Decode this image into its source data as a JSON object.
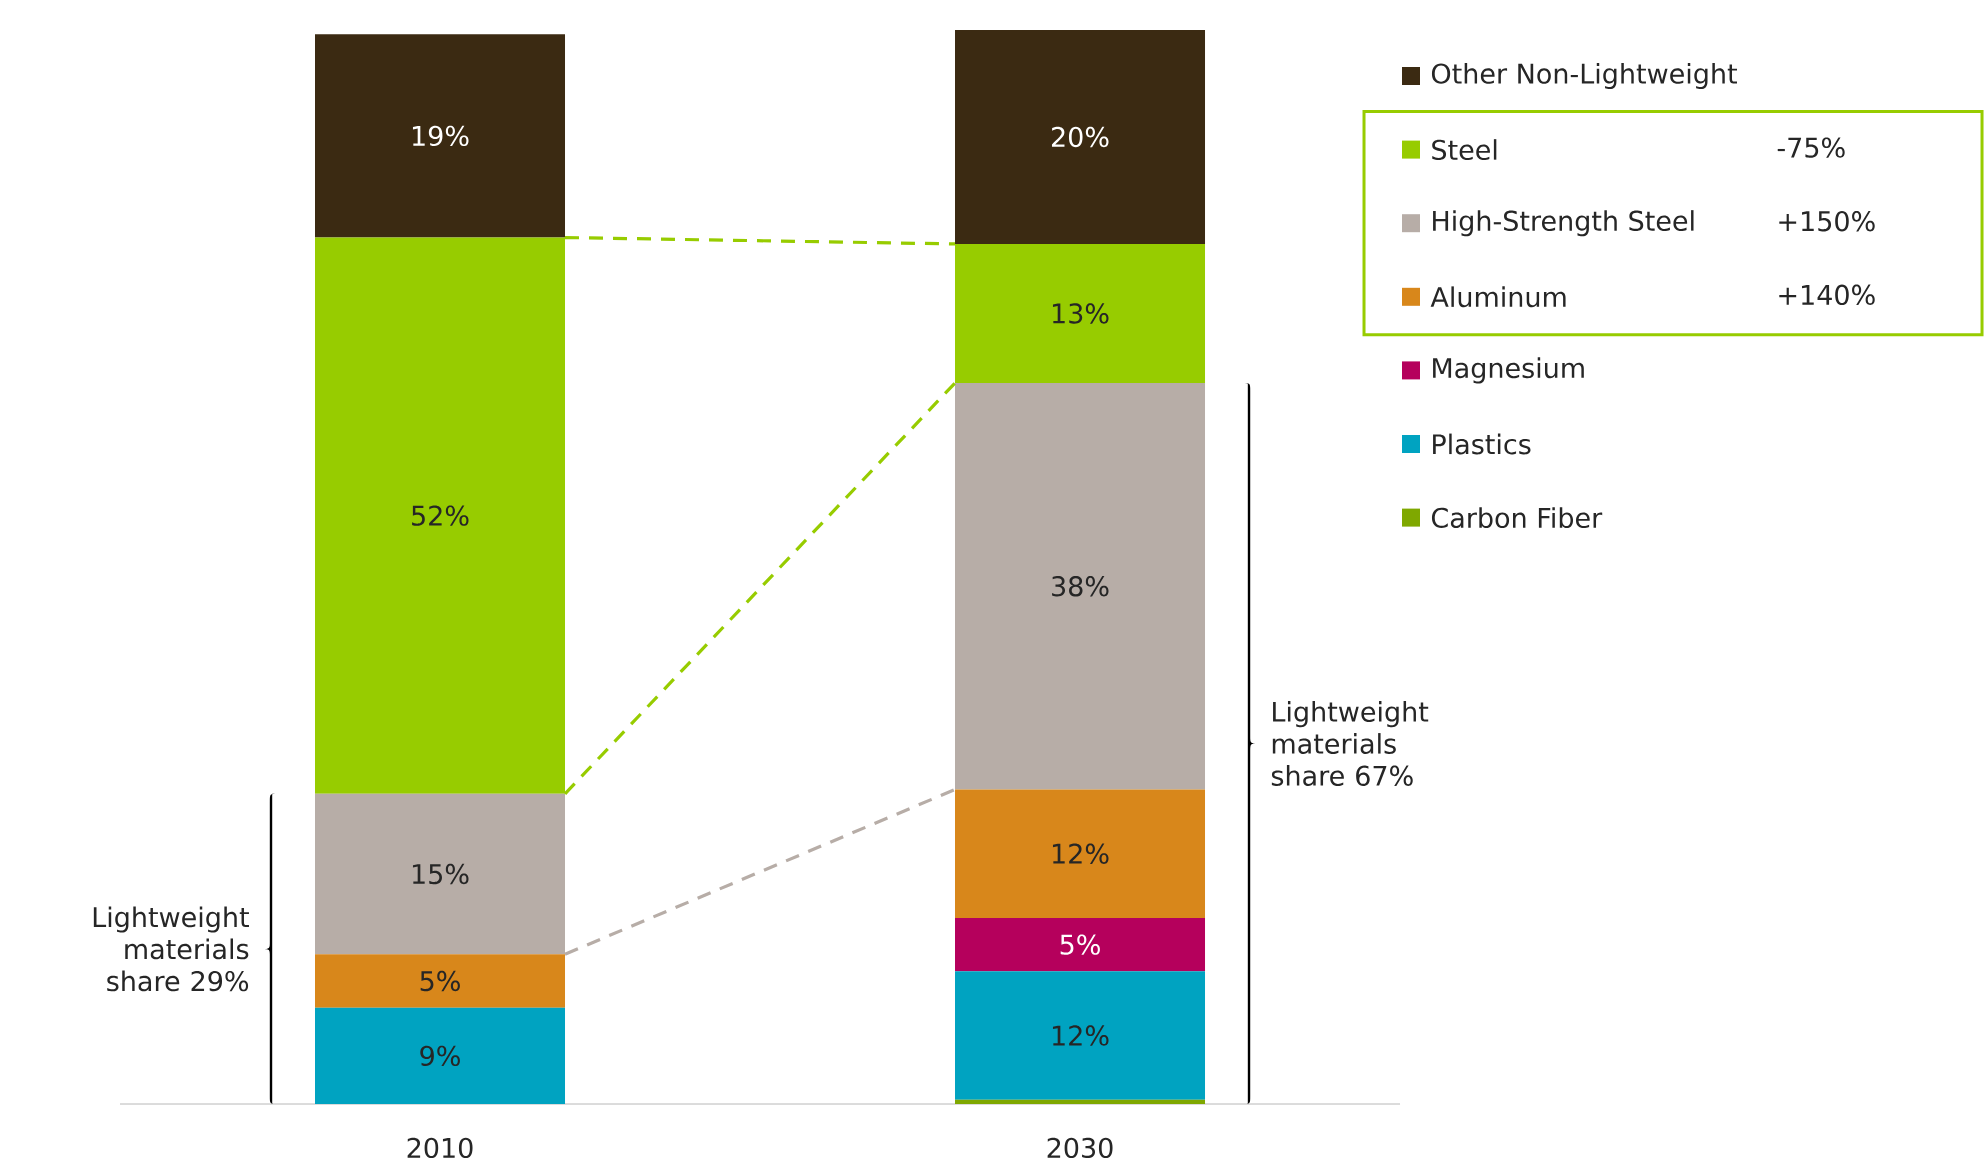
{
  "chart_data": {
    "type": "bar",
    "stacked": true,
    "legend": "right",
    "categories": [
      "2010",
      "2030"
    ],
    "series": [
      {
        "name": "Carbon Fiber",
        "color": "#7fa800",
        "values": [
          0,
          0.4
        ],
        "value_labels": [
          null,
          null
        ]
      },
      {
        "name": "Plastics",
        "color": "#00a3c1",
        "values": [
          9,
          12
        ],
        "value_labels": [
          "9%",
          "12%"
        ]
      },
      {
        "name": "Magnesium",
        "color": "#b5005c",
        "values": [
          0,
          5
        ],
        "value_labels": [
          null,
          "5%"
        ]
      },
      {
        "name": "Aluminum",
        "color": "#d8871b",
        "values": [
          5,
          12
        ],
        "value_labels": [
          "5%",
          "12%"
        ]
      },
      {
        "name": "High-Strength Steel",
        "color": "#b7ada7",
        "values": [
          15,
          38
        ],
        "value_labels": [
          "15%",
          "38%"
        ]
      },
      {
        "name": "Steel",
        "color": "#97cc00",
        "values": [
          52,
          13
        ],
        "value_labels": [
          "52%",
          "13%"
        ]
      },
      {
        "name": "Other Non-Lightweight",
        "color": "#3b2a12",
        "values": [
          19,
          20
        ],
        "value_labels": [
          "19%",
          "20%"
        ]
      }
    ],
    "annotations": [
      "-75%",
      "+150%",
      "+140%",
      "Lightweight materials share 29%",
      "Lightweight materials share 67%"
    ]
  }
}
